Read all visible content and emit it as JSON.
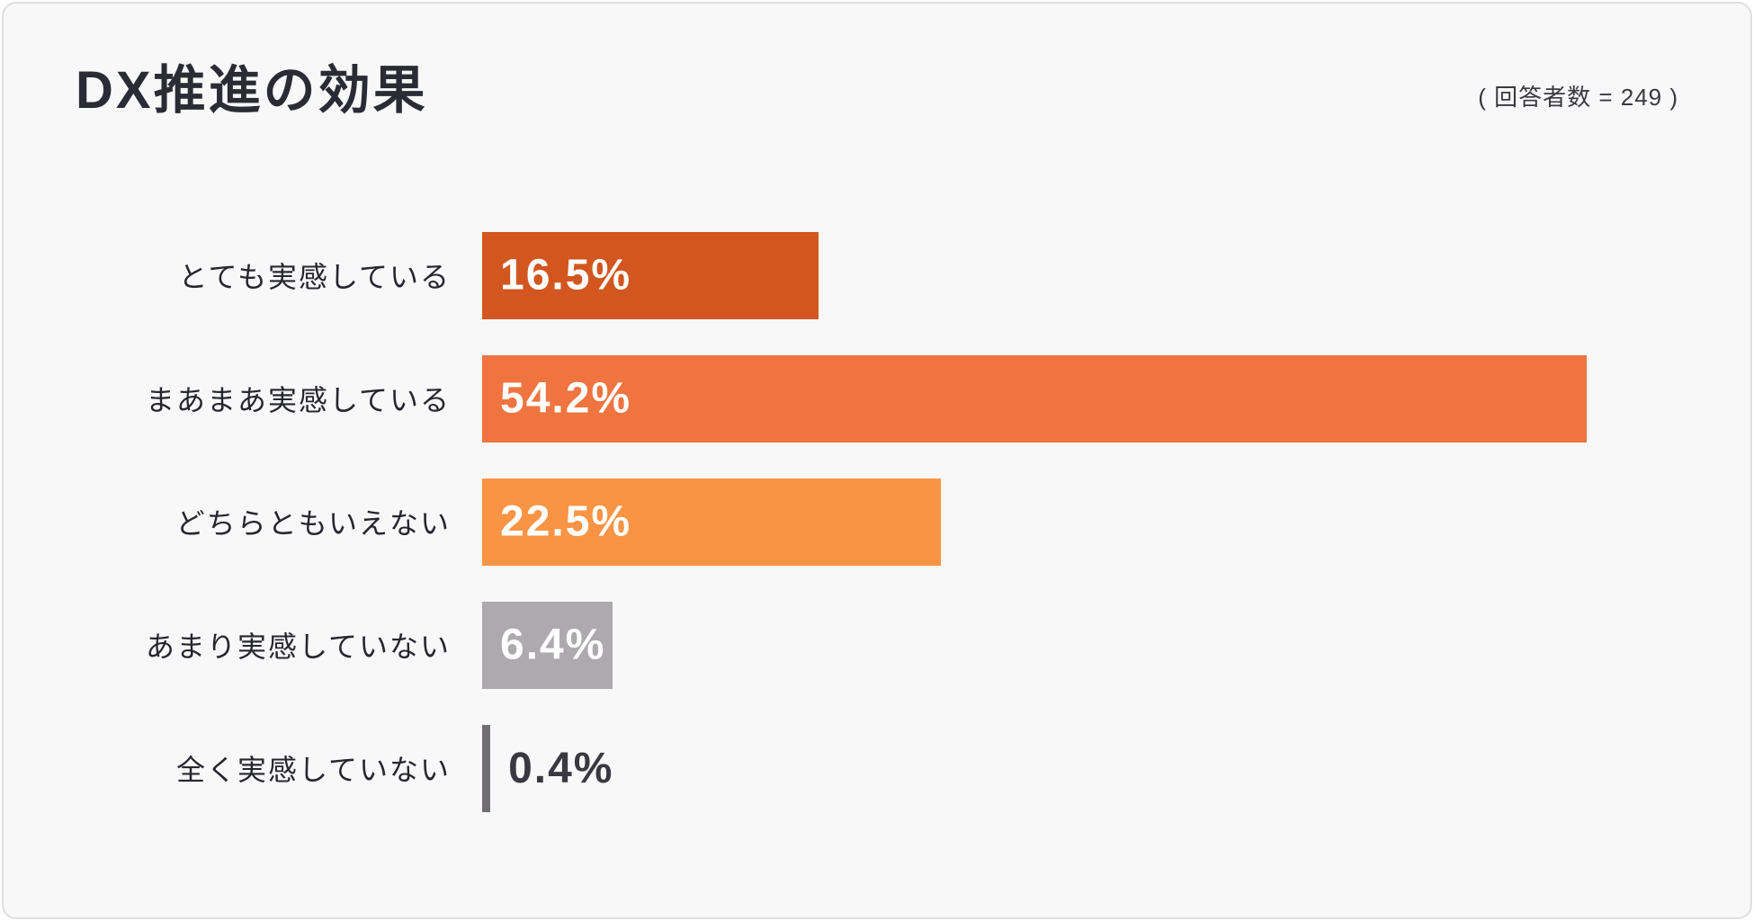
{
  "header": {
    "title": "DX推進の効果",
    "respondents_note": "( 回答者数 = 249 )"
  },
  "chart_data": {
    "type": "bar",
    "orientation": "horizontal",
    "title": "DX推進の効果",
    "respondents": 249,
    "categories": [
      "とても実感している",
      "まあまあ実感している",
      "どちらともいえない",
      "あまり実感していない",
      "全く実感していない"
    ],
    "values": [
      16.5,
      54.2,
      22.5,
      6.4,
      0.4
    ],
    "value_labels": [
      "16.5%",
      "54.2%",
      "22.5%",
      "6.4%",
      "0.4%"
    ],
    "bar_colors": [
      "#D2561F",
      "#EF7440",
      "#FA9445",
      "#ADAAAE",
      "#706D73"
    ],
    "xlim": [
      0,
      59.4
    ],
    "grid": false,
    "legend": false,
    "xlabel": "",
    "ylabel": ""
  },
  "colors": {
    "background": "#F8F8F9",
    "card_border": "#E0E0E2",
    "title_text": "#2B2B35",
    "label_text": "#26262F",
    "value_text_inside": "#FFFFFF",
    "value_text_outside": "#3A3840"
  }
}
